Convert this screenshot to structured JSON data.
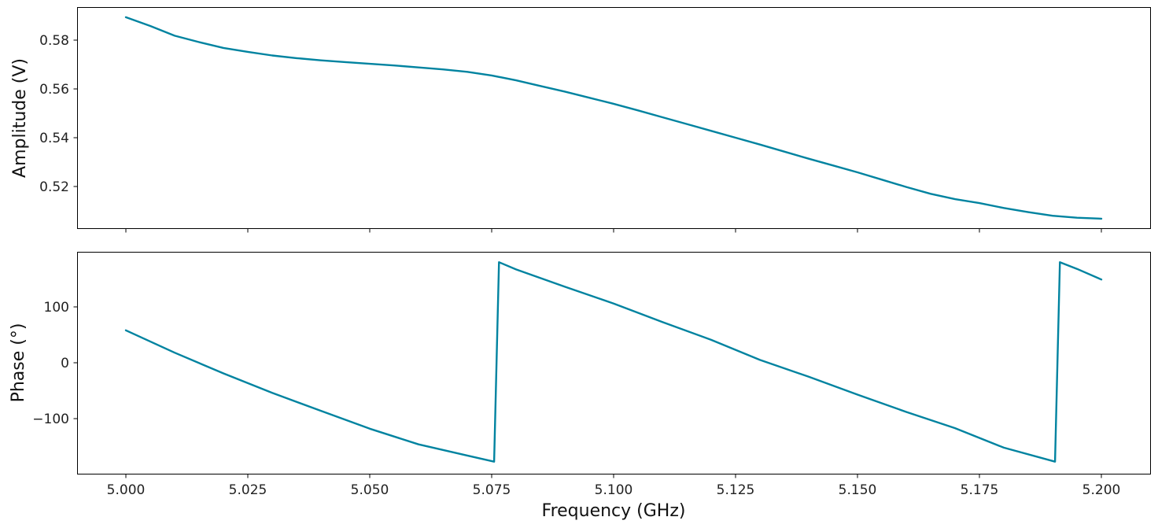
{
  "chart_data": [
    {
      "type": "line",
      "panel": "top",
      "title": "",
      "xlabel": "",
      "ylabel": "Amplitude (V)",
      "xlim": [
        4.99,
        5.21
      ],
      "ylim": [
        0.5029,
        0.5935
      ],
      "yticks": [
        0.52,
        0.54,
        0.56,
        0.58
      ],
      "ytick_labels": [
        "0.52",
        "0.54",
        "0.56",
        "0.58"
      ],
      "xticks": [
        5.0,
        5.025,
        5.05,
        5.075,
        5.1,
        5.125,
        5.15,
        5.175,
        5.2
      ],
      "xtick_labels_visible": false,
      "grid": false,
      "legend": null,
      "series": [
        {
          "name": "Amplitude",
          "color": "#0083a0",
          "x": [
            5.0,
            5.005,
            5.01,
            5.015,
            5.02,
            5.025,
            5.03,
            5.035,
            5.04,
            5.045,
            5.05,
            5.055,
            5.06,
            5.065,
            5.07,
            5.075,
            5.08,
            5.085,
            5.09,
            5.095,
            5.1,
            5.105,
            5.11,
            5.115,
            5.12,
            5.125,
            5.13,
            5.135,
            5.14,
            5.145,
            5.15,
            5.155,
            5.16,
            5.165,
            5.17,
            5.175,
            5.18,
            5.185,
            5.19,
            5.195,
            5.2
          ],
          "y": [
            0.5894,
            0.5858,
            0.5818,
            0.5792,
            0.5768,
            0.5752,
            0.5737,
            0.5726,
            0.5717,
            0.571,
            0.5703,
            0.5696,
            0.5688,
            0.568,
            0.567,
            0.5655,
            0.5635,
            0.5612,
            0.5589,
            0.5564,
            0.5539,
            0.5512,
            0.5484,
            0.5456,
            0.5428,
            0.54,
            0.5372,
            0.5343,
            0.5314,
            0.5286,
            0.5258,
            0.5228,
            0.5198,
            0.517,
            0.5148,
            0.5132,
            0.5112,
            0.5095,
            0.508,
            0.5072,
            0.5068
          ]
        }
      ]
    },
    {
      "type": "line",
      "panel": "bottom",
      "title": "",
      "xlabel": "Frequency (GHz)",
      "ylabel": "Phase (°)",
      "xlim": [
        4.99,
        5.21
      ],
      "ylim": [
        -200,
        198.6
      ],
      "yticks": [
        -100,
        0,
        100
      ],
      "ytick_labels": [
        "−100",
        "0",
        "100"
      ],
      "xticks": [
        5.0,
        5.025,
        5.05,
        5.075,
        5.1,
        5.125,
        5.15,
        5.175,
        5.2
      ],
      "xtick_labels": [
        "5.000",
        "5.025",
        "5.050",
        "5.075",
        "5.100",
        "5.125",
        "5.150",
        "5.175",
        "5.200"
      ],
      "grid": false,
      "legend": null,
      "series": [
        {
          "name": "Phase",
          "color": "#0083a0",
          "x": [
            5.0,
            5.01,
            5.02,
            5.03,
            5.04,
            5.05,
            5.06,
            5.07,
            5.0755,
            5.0765,
            5.08,
            5.09,
            5.1,
            5.11,
            5.12,
            5.13,
            5.14,
            5.15,
            5.16,
            5.17,
            5.18,
            5.1905,
            5.1915,
            5.195,
            5.2
          ],
          "y": [
            58,
            18,
            -19,
            -54,
            -86,
            -118,
            -146,
            -166,
            -177,
            180,
            167,
            136,
            106,
            73,
            41,
            5,
            -25,
            -57,
            -88,
            -117,
            -152,
            -177,
            180,
            168,
            149
          ]
        }
      ]
    }
  ],
  "figure": {
    "axes_color": "#000000",
    "line_color": "#0083a0",
    "background": "#ffffff"
  }
}
